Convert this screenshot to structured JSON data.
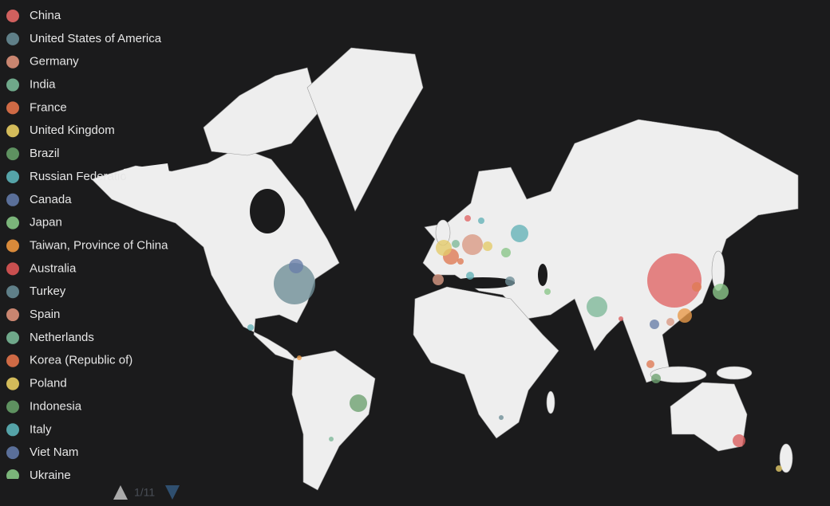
{
  "legend": {
    "items": [
      {
        "name": "China",
        "color": "#d0605e"
      },
      {
        "name": "United States of America",
        "color": "#5f7f88"
      },
      {
        "name": "Germany",
        "color": "#c98570"
      },
      {
        "name": "India",
        "color": "#6fa88a"
      },
      {
        "name": "France",
        "color": "#cf6a45"
      },
      {
        "name": "United Kingdom",
        "color": "#d3bb5a"
      },
      {
        "name": "Brazil",
        "color": "#5e9160"
      },
      {
        "name": "Russian Federation",
        "color": "#55a3a8"
      },
      {
        "name": "Canada",
        "color": "#5a6f99"
      },
      {
        "name": "Japan",
        "color": "#7bb57a"
      },
      {
        "name": "Taiwan, Province of China",
        "color": "#d98a3a"
      },
      {
        "name": "Australia",
        "color": "#c94f4f"
      },
      {
        "name": "Turkey",
        "color": "#5f7f88"
      },
      {
        "name": "Spain",
        "color": "#c98570"
      },
      {
        "name": "Netherlands",
        "color": "#6fa88a"
      },
      {
        "name": "Korea (Republic of)",
        "color": "#cf6a45"
      },
      {
        "name": "Poland",
        "color": "#d3bb5a"
      },
      {
        "name": "Indonesia",
        "color": "#5e9160"
      },
      {
        "name": "Italy",
        "color": "#55a3a8"
      },
      {
        "name": "Viet Nam",
        "color": "#5a6f99"
      },
      {
        "name": "Ukraine",
        "color": "#7bb57a"
      }
    ]
  },
  "pager": "1/11"
}
